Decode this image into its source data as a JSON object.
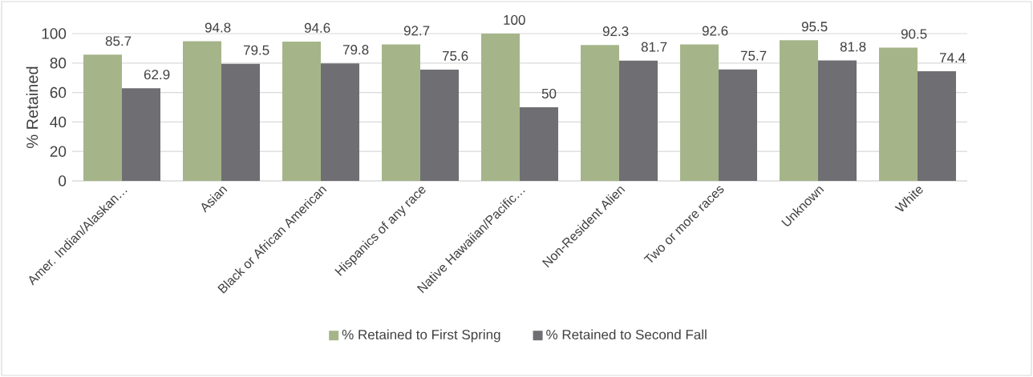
{
  "chart_data": {
    "type": "bar",
    "ylabel": "% Retained",
    "categories": [
      "Amer. Indian/Alaskan…",
      "Asian",
      "Black or African American",
      "Hispanics of any race",
      "Native Hawaiian/Pacific…",
      "Non-Resident Alien",
      "Two or more races",
      "Unknown",
      "White"
    ],
    "series": [
      {
        "name": "% Retained to First Spring",
        "color": "#a5b589",
        "values": [
          85.7,
          94.8,
          94.6,
          92.7,
          100,
          92.3,
          92.6,
          95.5,
          90.5
        ]
      },
      {
        "name": "% Retained to Second Fall",
        "color": "#6f6e73",
        "values": [
          62.9,
          79.5,
          79.8,
          75.6,
          50,
          81.7,
          75.7,
          81.8,
          74.4
        ]
      }
    ],
    "ylim": [
      0,
      100
    ],
    "yticks": [
      0,
      20,
      40,
      60,
      80,
      100
    ],
    "grid": "y",
    "legend": "bottom",
    "data_labels": true
  }
}
